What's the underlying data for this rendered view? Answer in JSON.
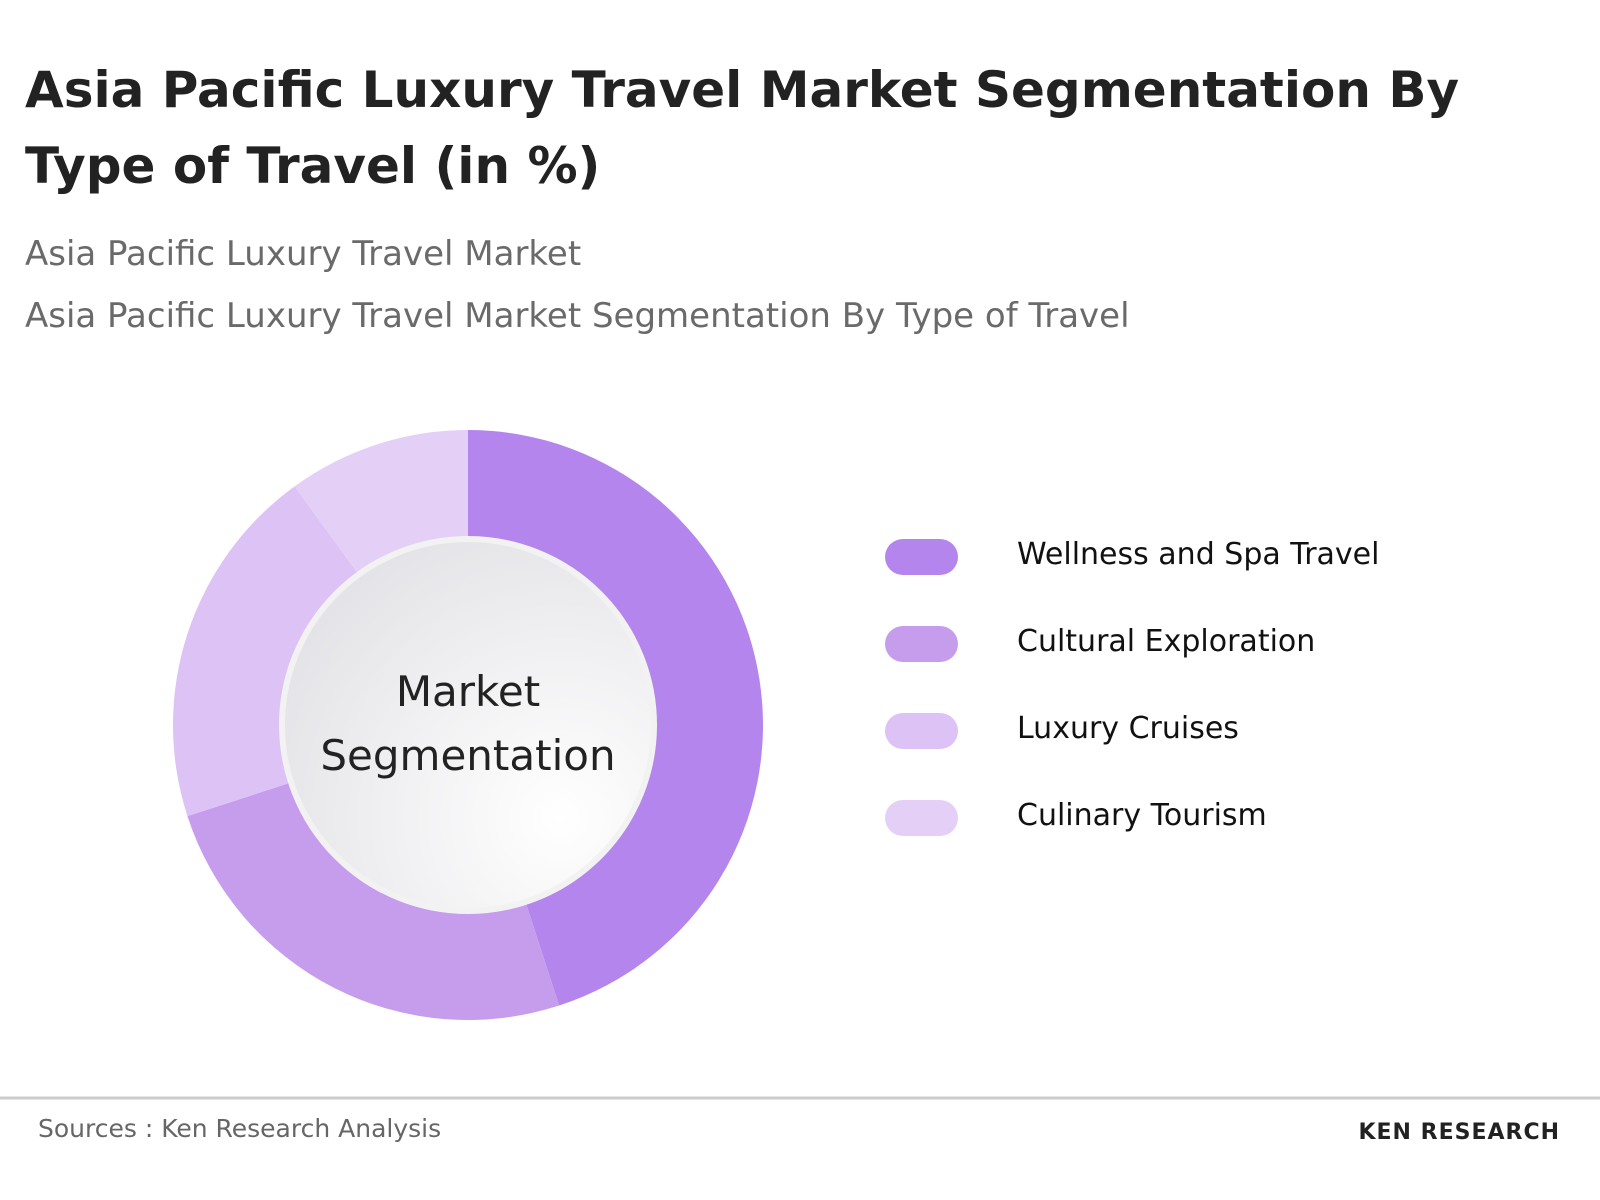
{
  "chart_data": {
    "type": "donut",
    "title": "Asia Pacific Luxury Travel Market Segmentation By Type of Travel (in %)",
    "subtitles": [
      "Asia Pacific Luxury Travel Market",
      "Asia Pacific Luxury Travel Market Segmentation By Type of Travel"
    ],
    "center_label": "Market Segmentation",
    "categories": [
      "Wellness and Spa Travel",
      "Cultural Exploration",
      "Luxury Cruises",
      "Culinary Tourism"
    ],
    "values": [
      45,
      25,
      20,
      10
    ],
    "colors": [
      "#b485ec",
      "#c69ced",
      "#dcc2f5",
      "#e4cff7"
    ],
    "source": "Sources : Ken Research Analysis",
    "logo": "KEN RESEARCH"
  }
}
